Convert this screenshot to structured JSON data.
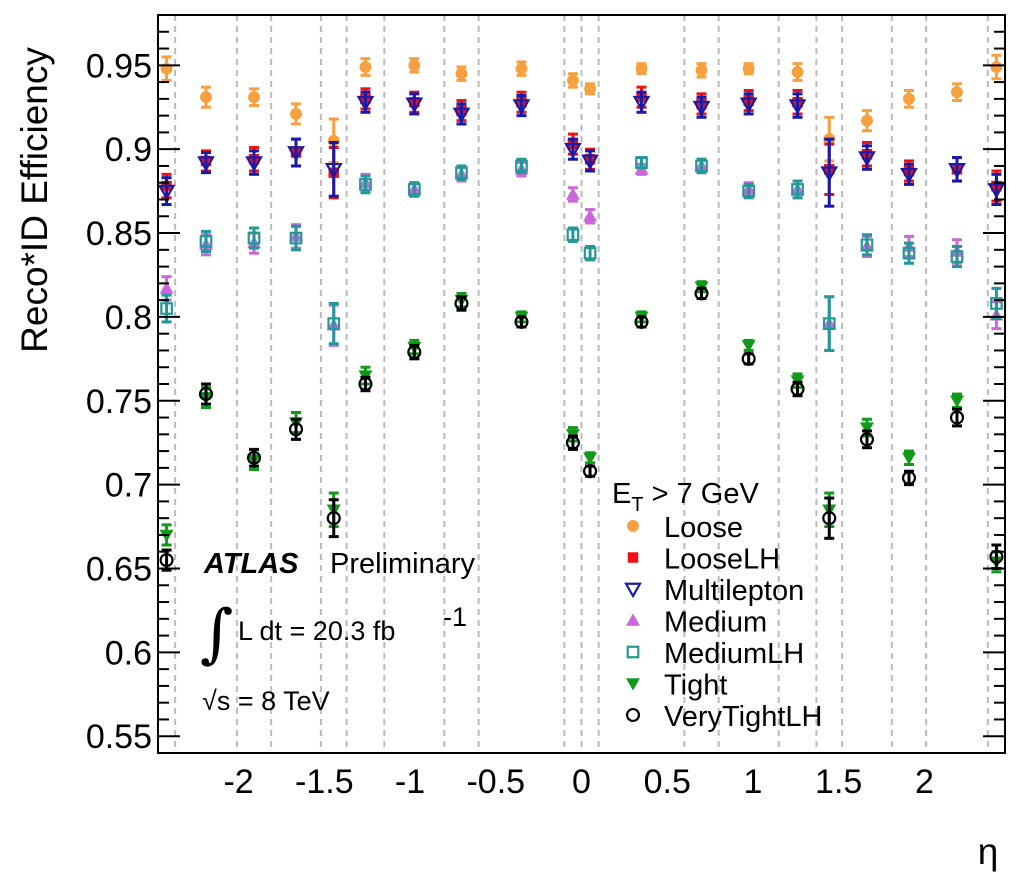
{
  "chart_data": {
    "type": "scatter",
    "title": "",
    "xlabel": "η",
    "ylabel": "Reco*ID Efficiency",
    "xlim": [
      -2.47,
      2.47
    ],
    "ylim": [
      0.54,
      0.98
    ],
    "xticks": [
      -2,
      -1.5,
      -1,
      -0.5,
      0,
      0.5,
      1,
      1.5,
      2
    ],
    "xtick_labels": [
      "-2",
      "-1.5",
      "-1",
      "-0.5",
      "0",
      "0.5",
      "1",
      "1.5",
      "2"
    ],
    "yticks": [
      0.55,
      0.6,
      0.65,
      0.7,
      0.75,
      0.8,
      0.85,
      0.9,
      0.95
    ],
    "ytick_labels": [
      "0.55",
      "0.6",
      "0.65",
      "0.7",
      "0.75",
      "0.8",
      "0.85",
      "0.9",
      "0.95"
    ],
    "grid": "dashed vertical lines at bin edges",
    "bin_edges": [
      -2.47,
      -2.37,
      -2.01,
      -1.81,
      -1.52,
      -1.37,
      -1.15,
      -0.8,
      -0.6,
      -0.1,
      0,
      0.1,
      0.6,
      0.8,
      1.15,
      1.37,
      1.52,
      1.81,
      2.01,
      2.37,
      2.47
    ],
    "x": [
      -2.42,
      -2.19,
      -1.91,
      -1.665,
      -1.445,
      -1.26,
      -0.975,
      -0.7,
      -0.35,
      -0.05,
      0.05,
      0.35,
      0.7,
      0.975,
      1.26,
      1.445,
      1.665,
      1.91,
      2.19,
      2.42
    ],
    "legend_header": "E_T > 7 GeV",
    "legend_header_parts": {
      "main": "E",
      "sub": "T",
      "rest": " > 7 GeV"
    },
    "legend_position": "bottom-right",
    "series": [
      {
        "name": "Loose",
        "marker": "circle",
        "color": "#f7a040",
        "values": [
          0.948,
          0.931,
          0.931,
          0.921,
          0.905,
          0.949,
          0.95,
          0.945,
          0.948,
          0.941,
          0.936,
          0.948,
          0.947,
          0.948,
          0.946,
          0.906,
          0.917,
          0.93,
          0.934,
          0.949
        ],
        "errors": [
          0.007,
          0.006,
          0.005,
          0.006,
          0.013,
          0.005,
          0.004,
          0.004,
          0.004,
          0.004,
          0.003,
          0.003,
          0.004,
          0.003,
          0.005,
          0.013,
          0.006,
          0.005,
          0.005,
          0.007
        ]
      },
      {
        "name": "LooseLH",
        "marker": "square",
        "color": "#ee1111",
        "values": [
          0.878,
          0.893,
          0.894,
          0.898,
          0.886,
          0.93,
          0.928,
          0.923,
          0.928,
          0.903,
          0.894,
          0.931,
          0.927,
          0.929,
          0.928,
          0.888,
          0.897,
          0.887,
          0.888,
          0.878
        ],
        "errors": [
          0.007,
          0.006,
          0.007,
          0.008,
          0.015,
          0.006,
          0.006,
          0.006,
          0.006,
          0.006,
          0.006,
          0.006,
          0.006,
          0.006,
          0.007,
          0.015,
          0.007,
          0.006,
          0.007,
          0.009
        ]
      },
      {
        "name": "Multilepton",
        "marker": "triangle-down-open",
        "color": "#1a1aaa",
        "values": [
          0.875,
          0.892,
          0.892,
          0.898,
          0.888,
          0.928,
          0.927,
          0.921,
          0.926,
          0.9,
          0.893,
          0.928,
          0.925,
          0.927,
          0.926,
          0.886,
          0.895,
          0.885,
          0.888,
          0.876
        ],
        "errors": [
          0.008,
          0.006,
          0.007,
          0.008,
          0.016,
          0.006,
          0.006,
          0.006,
          0.006,
          0.006,
          0.006,
          0.006,
          0.006,
          0.006,
          0.007,
          0.02,
          0.007,
          0.006,
          0.007,
          0.009
        ]
      },
      {
        "name": "Medium",
        "marker": "triangle-up",
        "color": "#cc66dd",
        "values": [
          0.817,
          0.843,
          0.844,
          0.848,
          0.795,
          0.88,
          0.876,
          0.885,
          0.888,
          0.873,
          0.86,
          0.888,
          0.89,
          0.876,
          0.876,
          0.796,
          0.842,
          0.842,
          0.839,
          0.801
        ],
        "errors": [
          0.007,
          0.006,
          0.006,
          0.007,
          0.012,
          0.005,
          0.004,
          0.004,
          0.004,
          0.004,
          0.004,
          0.003,
          0.004,
          0.004,
          0.005,
          0.016,
          0.006,
          0.006,
          0.007,
          0.008
        ]
      },
      {
        "name": "MediumLH",
        "marker": "square-open",
        "color": "#229999",
        "values": [
          0.805,
          0.845,
          0.847,
          0.847,
          0.796,
          0.879,
          0.876,
          0.886,
          0.89,
          0.849,
          0.838,
          0.892,
          0.89,
          0.875,
          0.876,
          0.796,
          0.843,
          0.838,
          0.836,
          0.808
        ],
        "errors": [
          0.008,
          0.006,
          0.006,
          0.007,
          0.012,
          0.005,
          0.004,
          0.004,
          0.004,
          0.004,
          0.004,
          0.003,
          0.004,
          0.004,
          0.005,
          0.016,
          0.006,
          0.006,
          0.006,
          0.009
        ]
      },
      {
        "name": "Tight",
        "marker": "triangle-down",
        "color": "#11991a",
        "values": [
          0.67,
          0.752,
          0.715,
          0.737,
          0.685,
          0.765,
          0.782,
          0.81,
          0.8,
          0.73,
          0.716,
          0.8,
          0.818,
          0.783,
          0.762,
          0.685,
          0.734,
          0.716,
          0.75,
          0.654
        ],
        "errors": [
          0.006,
          0.006,
          0.006,
          0.006,
          0.01,
          0.005,
          0.004,
          0.004,
          0.003,
          0.004,
          0.003,
          0.003,
          0.003,
          0.003,
          0.004,
          0.01,
          0.005,
          0.004,
          0.004,
          0.006
        ]
      },
      {
        "name": "VeryTightLH",
        "marker": "circle-open",
        "color": "#000000",
        "values": [
          0.655,
          0.754,
          0.716,
          0.733,
          0.68,
          0.76,
          0.779,
          0.808,
          0.797,
          0.725,
          0.708,
          0.797,
          0.814,
          0.775,
          0.757,
          0.68,
          0.727,
          0.704,
          0.74,
          0.657
        ],
        "errors": [
          0.006,
          0.006,
          0.005,
          0.006,
          0.011,
          0.004,
          0.004,
          0.004,
          0.003,
          0.004,
          0.003,
          0.003,
          0.003,
          0.003,
          0.004,
          0.012,
          0.005,
          0.004,
          0.005,
          0.007
        ]
      }
    ],
    "annotations": {
      "experiment": "ATLAS",
      "status": "Preliminary",
      "lumi_prefix": "L dt = 20.3 fb",
      "lumi_exponent": "-1",
      "energy": "√s = 8 TeV"
    }
  }
}
